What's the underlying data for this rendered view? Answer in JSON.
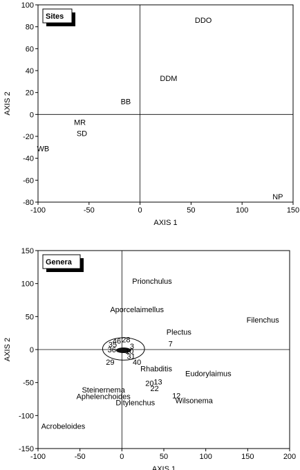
{
  "chart_data": [
    {
      "type": "scatter",
      "title": "",
      "legend": "Sites",
      "legend_position": "top-left",
      "xlabel": "AXIS 1",
      "ylabel": "AXIS 2",
      "xlim": [
        -100,
        150
      ],
      "ylim": [
        -80,
        100
      ],
      "xticks": [
        "-100",
        "-50",
        "0",
        "50",
        "100",
        "150"
      ],
      "yticks": [
        "100",
        "80",
        "60",
        "40",
        "20",
        "0",
        "-20",
        "-40",
        "-60",
        "-80"
      ],
      "points": [
        {
          "label": "DDO",
          "x": 62,
          "y": 86
        },
        {
          "label": "DDM",
          "x": 28,
          "y": 33
        },
        {
          "label": "BB",
          "x": -14,
          "y": 12
        },
        {
          "label": "MR",
          "x": -59,
          "y": -7
        },
        {
          "label": "SD",
          "x": -57,
          "y": -17
        },
        {
          "label": "WB",
          "x": -95,
          "y": -31
        },
        {
          "label": "NP",
          "x": 135,
          "y": -75
        }
      ]
    },
    {
      "type": "scatter",
      "title": "",
      "legend": "Genera",
      "legend_position": "top-left",
      "xlabel": "AXIS 1",
      "ylabel": "AXIS 2",
      "xlim": [
        -100,
        200
      ],
      "ylim": [
        -150,
        150
      ],
      "xticks": [
        "-100",
        "-50",
        "0",
        "50",
        "100",
        "150",
        "200"
      ],
      "yticks": [
        "150",
        "100",
        "50",
        "0",
        "-50",
        "-100",
        "-150"
      ],
      "points": [
        {
          "label": "Prionchulus",
          "x": 36,
          "y": 104
        },
        {
          "label": "Aporcelaimellus",
          "x": 18,
          "y": 61
        },
        {
          "label": "Filenchus",
          "x": 168,
          "y": 45
        },
        {
          "label": "Plectus",
          "x": 68,
          "y": 27
        },
        {
          "label": "7",
          "x": 58,
          "y": 9
        },
        {
          "label": "28",
          "x": 5,
          "y": 15
        },
        {
          "label": "46",
          "x": -6,
          "y": 13
        },
        {
          "label": "35",
          "x": -11,
          "y": 8
        },
        {
          "label": "3",
          "x": 12,
          "y": 5
        },
        {
          "label": "36",
          "x": -12,
          "y": 0
        },
        {
          "label": "10",
          "x": 9,
          "y": -2
        },
        {
          "label": "29",
          "x": -14,
          "y": -19
        },
        {
          "label": "31",
          "x": 11,
          "y": -10
        },
        {
          "label": "40",
          "x": 18,
          "y": -19
        },
        {
          "label": "Rhabditis",
          "x": 41,
          "y": -29
        },
        {
          "label": "Eudorylaimus",
          "x": 103,
          "y": -36
        },
        {
          "label": "20",
          "x": 33,
          "y": -51
        },
        {
          "label": "13",
          "x": 43,
          "y": -49
        },
        {
          "label": "22",
          "x": 39,
          "y": -59
        },
        {
          "label": "Steinernema",
          "x": -22,
          "y": -61
        },
        {
          "label": "12",
          "x": 65,
          "y": -70
        },
        {
          "label": "Aphelenchoides",
          "x": -22,
          "y": -71
        },
        {
          "label": "Wilsonema",
          "x": 86,
          "y": -77
        },
        {
          "label": "Ditylenchus",
          "x": 16,
          "y": -80
        },
        {
          "label": "Acrobeloides",
          "x": -70,
          "y": -116
        }
      ],
      "ellipse": {
        "cx": 2,
        "cy": 1,
        "rx": 25,
        "ry": 17
      }
    }
  ]
}
